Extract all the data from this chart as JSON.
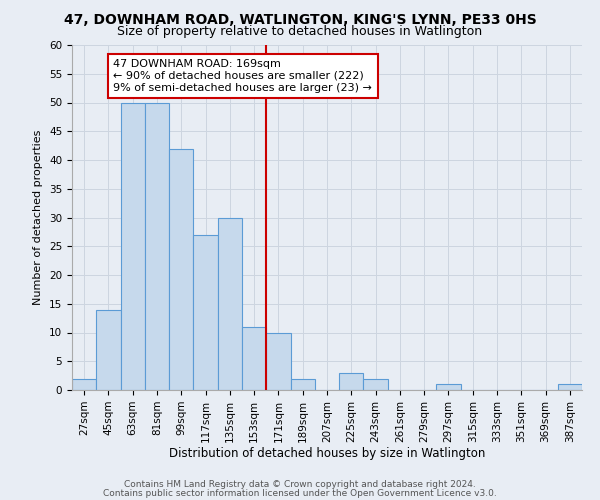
{
  "title1": "47, DOWNHAM ROAD, WATLINGTON, KING'S LYNN, PE33 0HS",
  "title2": "Size of property relative to detached houses in Watlington",
  "xlabel": "Distribution of detached houses by size in Watlington",
  "ylabel": "Number of detached properties",
  "categories": [
    "27sqm",
    "45sqm",
    "63sqm",
    "81sqm",
    "99sqm",
    "117sqm",
    "135sqm",
    "153sqm",
    "171sqm",
    "189sqm",
    "207sqm",
    "225sqm",
    "243sqm",
    "261sqm",
    "279sqm",
    "297sqm",
    "315sqm",
    "333sqm",
    "351sqm",
    "369sqm",
    "387sqm"
  ],
  "values": [
    2,
    14,
    50,
    50,
    42,
    27,
    30,
    11,
    10,
    2,
    0,
    3,
    2,
    0,
    0,
    1,
    0,
    0,
    0,
    0,
    1
  ],
  "bar_color": "#c6d9ec",
  "bar_edge_color": "#5b9bd5",
  "vline_color": "#cc0000",
  "vline_index": 8,
  "annotation_text": "47 DOWNHAM ROAD: 169sqm\n← 90% of detached houses are smaller (222)\n9% of semi-detached houses are larger (23) →",
  "annotation_box_color": "#ffffff",
  "annotation_box_edge": "#cc0000",
  "ylim": [
    0,
    60
  ],
  "yticks": [
    0,
    5,
    10,
    15,
    20,
    25,
    30,
    35,
    40,
    45,
    50,
    55,
    60
  ],
  "grid_color": "#cdd5e0",
  "background_color": "#e8edf4",
  "footer1": "Contains HM Land Registry data © Crown copyright and database right 2024.",
  "footer2": "Contains public sector information licensed under the Open Government Licence v3.0.",
  "title1_fontsize": 10,
  "title2_fontsize": 9,
  "xlabel_fontsize": 8.5,
  "ylabel_fontsize": 8,
  "tick_fontsize": 7.5,
  "annotation_fontsize": 8,
  "footer_fontsize": 6.5
}
